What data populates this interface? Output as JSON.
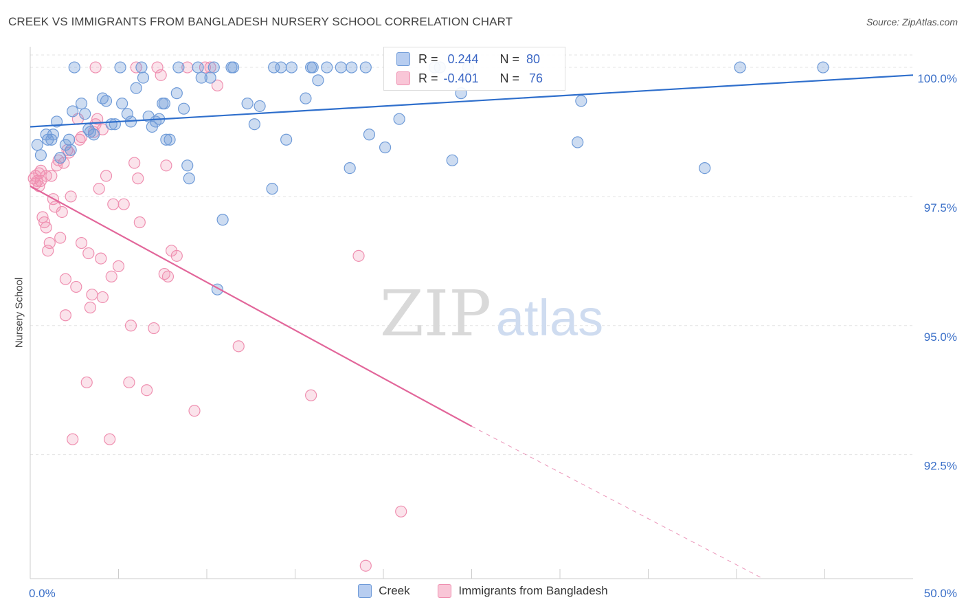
{
  "title": "CREEK VS IMMIGRANTS FROM BANGLADESH NURSERY SCHOOL CORRELATION CHART",
  "source": "Source: ZipAtlas.com",
  "watermark": {
    "zip": "ZIP",
    "atlas": "atlas"
  },
  "colors": {
    "creek": "#6f9bd8",
    "creek_line": "#2f6fcc",
    "bangladesh": "#ef8fb0",
    "bangladesh_line": "#e2669a",
    "tick_label": "#3a6fc8"
  },
  "legend_top": {
    "rows": [
      {
        "r_label": "R =",
        "r_value": "0.244",
        "n_label": "N =",
        "n_value": "80"
      },
      {
        "r_label": "R =",
        "r_value": "-0.401",
        "n_label": "N =",
        "n_value": "76"
      }
    ]
  },
  "legend_bottom": [
    "Creek",
    "Immigrants from Bangladesh"
  ],
  "chart_data": {
    "type": "scatter",
    "title": "CREEK VS IMMIGRANTS FROM BANGLADESH NURSERY SCHOOL CORRELATION CHART",
    "xlabel": "",
    "ylabel": "Nursery School",
    "xlim": [
      0,
      50
    ],
    "ylim": [
      90.1,
      100.4
    ],
    "x_tick_labels": [
      "0.0%",
      "50.0%"
    ],
    "y_ticks": [
      100.0,
      97.5,
      95.0,
      92.5
    ],
    "y_tick_labels": [
      "100.0%",
      "97.5%",
      "95.0%",
      "92.5%"
    ],
    "grid": true,
    "series": [
      {
        "name": "Creek",
        "trend": {
          "x0": 0,
          "y0": 98.85,
          "x1": 50,
          "y1": 99.85
        },
        "points": [
          [
            0.4,
            98.5
          ],
          [
            0.6,
            98.3
          ],
          [
            0.9,
            98.7
          ],
          [
            1.0,
            98.6
          ],
          [
            1.2,
            98.6
          ],
          [
            1.5,
            98.95
          ],
          [
            1.7,
            98.25
          ],
          [
            2.0,
            98.5
          ],
          [
            2.2,
            98.6
          ],
          [
            2.3,
            98.4
          ],
          [
            2.4,
            99.15
          ],
          [
            2.9,
            99.3
          ],
          [
            3.1,
            99.1
          ],
          [
            3.4,
            98.75
          ],
          [
            3.6,
            98.7
          ],
          [
            4.1,
            99.4
          ],
          [
            4.3,
            99.35
          ],
          [
            4.6,
            98.9
          ],
          [
            4.8,
            98.9
          ],
          [
            5.2,
            99.3
          ],
          [
            5.5,
            99.1
          ],
          [
            5.7,
            98.95
          ],
          [
            6.0,
            99.6
          ],
          [
            6.4,
            99.8
          ],
          [
            6.7,
            99.05
          ],
          [
            6.9,
            98.85
          ],
          [
            7.1,
            98.95
          ],
          [
            7.3,
            99.0
          ],
          [
            7.5,
            99.3
          ],
          [
            7.7,
            98.6
          ],
          [
            7.9,
            98.6
          ],
          [
            8.3,
            99.5
          ],
          [
            8.7,
            99.2
          ],
          [
            8.9,
            98.1
          ],
          [
            9.0,
            97.85
          ],
          [
            9.7,
            99.8
          ],
          [
            10.2,
            99.8
          ],
          [
            10.4,
            100.0
          ],
          [
            10.9,
            97.05
          ],
          [
            10.6,
            95.7
          ],
          [
            11.5,
            100.0
          ],
          [
            12.3,
            99.3
          ],
          [
            12.7,
            98.9
          ],
          [
            13.0,
            99.25
          ],
          [
            13.7,
            97.65
          ],
          [
            14.2,
            100.0
          ],
          [
            14.5,
            98.6
          ],
          [
            14.8,
            100.0
          ],
          [
            15.6,
            99.4
          ],
          [
            15.9,
            100.0
          ],
          [
            16.0,
            100.0
          ],
          [
            16.3,
            99.75
          ],
          [
            16.8,
            100.0
          ],
          [
            17.6,
            100.0
          ],
          [
            18.2,
            100.0
          ],
          [
            18.1,
            98.05
          ],
          [
            19.2,
            98.7
          ],
          [
            20.1,
            98.45
          ],
          [
            20.9,
            99.0
          ],
          [
            23.2,
            100.0
          ],
          [
            23.9,
            98.2
          ],
          [
            24.4,
            99.5
          ],
          [
            24.8,
            100.0
          ],
          [
            31.0,
            98.55
          ],
          [
            31.2,
            99.35
          ],
          [
            38.2,
            98.05
          ],
          [
            40.2,
            100.0
          ],
          [
            44.9,
            100.0
          ],
          [
            6.3,
            100.0
          ],
          [
            8.4,
            100.0
          ],
          [
            9.5,
            100.0
          ],
          [
            2.5,
            100.0
          ],
          [
            7.6,
            99.3
          ],
          [
            13.8,
            100.0
          ],
          [
            5.1,
            100.0
          ],
          [
            19.0,
            100.0
          ],
          [
            22.9,
            100.0
          ],
          [
            3.3,
            98.8
          ],
          [
            1.3,
            98.7
          ],
          [
            11.4,
            100.0
          ]
        ]
      },
      {
        "name": "Immigrants from Bangladesh",
        "trend": {
          "x0": 0,
          "y0": 97.7,
          "x1": 25,
          "y1": 93.05
        },
        "trend_dashed": {
          "x0": 25,
          "y0": 93.05,
          "x1": 41.5,
          "y1": 90.1
        },
        "points": [
          [
            0.2,
            97.85
          ],
          [
            0.3,
            97.9
          ],
          [
            0.3,
            97.75
          ],
          [
            0.4,
            97.8
          ],
          [
            0.5,
            97.7
          ],
          [
            0.5,
            97.95
          ],
          [
            0.6,
            98.0
          ],
          [
            0.6,
            97.8
          ],
          [
            0.7,
            97.1
          ],
          [
            0.8,
            97.0
          ],
          [
            0.9,
            97.9
          ],
          [
            1.0,
            96.45
          ],
          [
            1.1,
            96.6
          ],
          [
            1.2,
            97.9
          ],
          [
            1.3,
            97.45
          ],
          [
            1.4,
            97.3
          ],
          [
            1.5,
            98.1
          ],
          [
            1.6,
            98.2
          ],
          [
            1.7,
            96.7
          ],
          [
            1.8,
            97.2
          ],
          [
            2.0,
            95.9
          ],
          [
            2.0,
            95.2
          ],
          [
            2.2,
            98.35
          ],
          [
            2.3,
            97.5
          ],
          [
            2.4,
            92.8
          ],
          [
            2.6,
            95.75
          ],
          [
            2.8,
            98.6
          ],
          [
            2.9,
            98.65
          ],
          [
            2.9,
            96.6
          ],
          [
            3.2,
            93.9
          ],
          [
            3.3,
            96.4
          ],
          [
            3.4,
            95.35
          ],
          [
            3.5,
            95.6
          ],
          [
            3.6,
            98.75
          ],
          [
            3.7,
            98.9
          ],
          [
            3.9,
            97.65
          ],
          [
            4.0,
            96.3
          ],
          [
            4.1,
            95.55
          ],
          [
            4.3,
            97.9
          ],
          [
            4.5,
            92.8
          ],
          [
            4.6,
            95.95
          ],
          [
            4.7,
            97.35
          ],
          [
            5.0,
            96.15
          ],
          [
            5.3,
            97.35
          ],
          [
            5.6,
            93.9
          ],
          [
            5.7,
            95.0
          ],
          [
            5.9,
            98.15
          ],
          [
            6.1,
            97.85
          ],
          [
            6.2,
            97.0
          ],
          [
            6.6,
            93.75
          ],
          [
            7.0,
            94.95
          ],
          [
            7.4,
            99.85
          ],
          [
            7.6,
            96.0
          ],
          [
            7.7,
            98.1
          ],
          [
            7.8,
            95.95
          ],
          [
            8.0,
            96.45
          ],
          [
            8.3,
            96.35
          ],
          [
            8.9,
            100.0
          ],
          [
            9.3,
            93.35
          ],
          [
            10.2,
            100.0
          ],
          [
            10.6,
            99.65
          ],
          [
            11.8,
            94.6
          ],
          [
            15.9,
            93.65
          ],
          [
            18.6,
            96.35
          ],
          [
            19.0,
            90.35
          ],
          [
            21.0,
            91.4
          ],
          [
            3.7,
            100.0
          ],
          [
            6.0,
            100.0
          ],
          [
            9.9,
            100.0
          ],
          [
            2.7,
            99.0
          ],
          [
            3.8,
            99.0
          ],
          [
            1.9,
            98.15
          ],
          [
            0.9,
            96.9
          ],
          [
            4.1,
            98.8
          ],
          [
            7.2,
            100.0
          ],
          [
            2.1,
            98.4
          ]
        ]
      }
    ]
  }
}
